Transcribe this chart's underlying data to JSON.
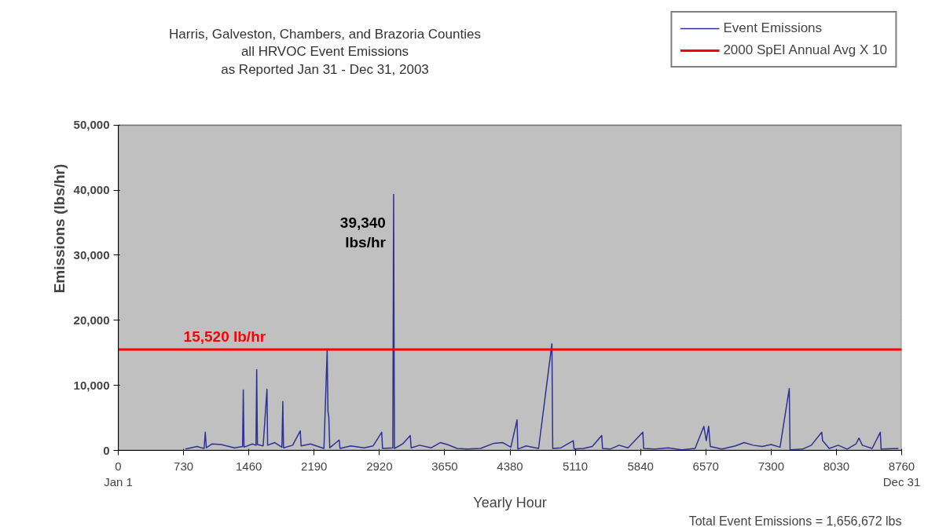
{
  "chart_data": {
    "type": "line",
    "title": "Harris, Galveston, Chambers, and Brazoria Counties\nall HRVOC Event Emissions\nas Reported Jan 31 - Dec 31, 2003",
    "xlabel": "Yearly Hour",
    "ylabel": "Emissions (lbs/hr)",
    "series": [
      {
        "name": "Event Emissions",
        "color": "#2e3192",
        "x": [
          750,
          880,
          960,
          973,
          985,
          1050,
          1150,
          1300,
          1390,
          1398,
          1406,
          1500,
          1540,
          1548,
          1556,
          1620,
          1663,
          1670,
          1750,
          1830,
          1840,
          1848,
          1950,
          2035,
          2045,
          2150,
          2300,
          2336,
          2345,
          2354,
          2365,
          2470,
          2480,
          2600,
          2750,
          2850,
          2946,
          2955,
          3070,
          3079,
          3088,
          3180,
          3265,
          3275,
          3370,
          3500,
          3600,
          3680,
          3790,
          3900,
          4050,
          4200,
          4300,
          4390,
          4459,
          4468,
          4560,
          4700,
          4849,
          4858,
          4950,
          5088,
          5097,
          5200,
          5300,
          5406,
          5415,
          5500,
          5600,
          5700,
          5866,
          5875,
          6000,
          6150,
          6300,
          6450,
          6548,
          6575,
          6601,
          6620,
          6750,
          6900,
          7000,
          7100,
          7200,
          7300,
          7400,
          7503,
          7512,
          7650,
          7750,
          7866,
          7876,
          7950,
          8050,
          8150,
          8250,
          8282,
          8320,
          8430,
          8521,
          8530,
          8724
        ],
        "values": [
          200,
          600,
          300,
          2800,
          400,
          1000,
          900,
          400,
          600,
          9300,
          500,
          1000,
          800,
          12400,
          900,
          700,
          9400,
          800,
          1200,
          500,
          7500,
          400,
          800,
          3000,
          700,
          1000,
          300,
          15400,
          6000,
          5200,
          400,
          1600,
          300,
          700,
          400,
          700,
          2800,
          300,
          400,
          39340,
          300,
          1000,
          2300,
          400,
          800,
          400,
          1200,
          900,
          300,
          200,
          300,
          1100,
          1200,
          500,
          4700,
          200,
          700,
          300,
          16400,
          300,
          400,
          1500,
          200,
          300,
          600,
          2300,
          300,
          200,
          800,
          400,
          2800,
          300,
          200,
          400,
          100,
          300,
          3700,
          1500,
          3700,
          600,
          200,
          700,
          1200,
          800,
          600,
          900,
          500,
          9500,
          100,
          200,
          800,
          2800,
          1500,
          300,
          800,
          200,
          1000,
          1900,
          800,
          300,
          2800,
          200,
          300
        ]
      },
      {
        "name": "2000 SpEI Annual Avg X 10",
        "color": "#ff0000",
        "x": [
          0,
          8760
        ],
        "values": [
          15520,
          15520
        ]
      }
    ],
    "annotations": [
      {
        "text": "39,340\nlbs/hr",
        "x": 3079,
        "y": 39340
      },
      {
        "text": "15,520 lb/hr",
        "x": 730,
        "y": 15520
      },
      "Total Event Emissions = 1,656,672 lbs"
    ],
    "xlim": [
      0,
      8760
    ],
    "xticks": [
      {
        "value": 0,
        "label": "0\nJan 1"
      },
      730,
      1460,
      2190,
      2920,
      3650,
      4380,
      5110,
      5840,
      6570,
      7300,
      8030,
      {
        "value": 8760,
        "label": "8760\nDec 31"
      }
    ],
    "ylim": [
      0,
      50000
    ],
    "yticks": [
      {
        "value": 0,
        "label": "0"
      },
      {
        "value": 10000,
        "label": "10,000"
      },
      {
        "value": 20000,
        "label": "20,000"
      },
      {
        "value": 30000,
        "label": "30,000"
      },
      {
        "value": 40000,
        "label": "40,000"
      },
      {
        "value": 50000,
        "label": "50,000"
      }
    ],
    "grid": "y",
    "legend": "top right"
  }
}
